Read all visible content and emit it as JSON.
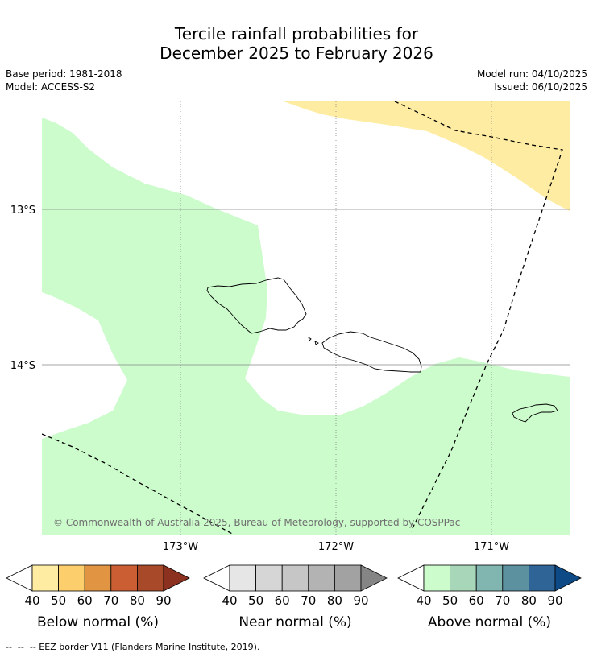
{
  "title": {
    "line1": "Tercile rainfall probabilities for",
    "line2": "December 2025 to February 2026"
  },
  "meta": {
    "base_period": "Base period: 1981-2018",
    "model": "Model: ACCESS-S2",
    "model_run": "Model run: 04/10/2025",
    "issued": "Issued: 06/10/2025"
  },
  "map": {
    "lat_labels": [
      "13°S",
      "14°S"
    ],
    "lon_labels": [
      "173°W",
      "172°W",
      "171°W"
    ],
    "copyright": "© Commonwealth of Australia 2025, Bureau of Meteorology, supported by COSPPac",
    "colors": {
      "below_40": "#fdeca2",
      "above_40": "#ccfbcc",
      "land_outline": "#000000",
      "grid": "#888888"
    }
  },
  "colorbars": [
    {
      "title": "Below normal (%)",
      "ticks": [
        "40",
        "50",
        "60",
        "70",
        "80",
        "90"
      ],
      "colors": [
        "#fdeca2",
        "#fccf6c",
        "#e19442",
        "#cb5f33",
        "#a84a29",
        "#8c3020"
      ]
    },
    {
      "title": "Near normal (%)",
      "ticks": [
        "40",
        "50",
        "60",
        "70",
        "80",
        "90"
      ],
      "colors": [
        "#e6e6e6",
        "#d6d6d6",
        "#c6c6c6",
        "#b3b3b3",
        "#a2a2a2",
        "#858585"
      ]
    },
    {
      "title": "Above normal (%)",
      "ticks": [
        "40",
        "50",
        "60",
        "70",
        "80",
        "90"
      ],
      "colors": [
        "#ccfbcc",
        "#a7d7b8",
        "#80b5b0",
        "#5c91a0",
        "#2f6497",
        "#0e4a86"
      ]
    }
  ],
  "footnote": "--  --  -- EEZ border V11 (Flanders Marine Institute, 2019)."
}
